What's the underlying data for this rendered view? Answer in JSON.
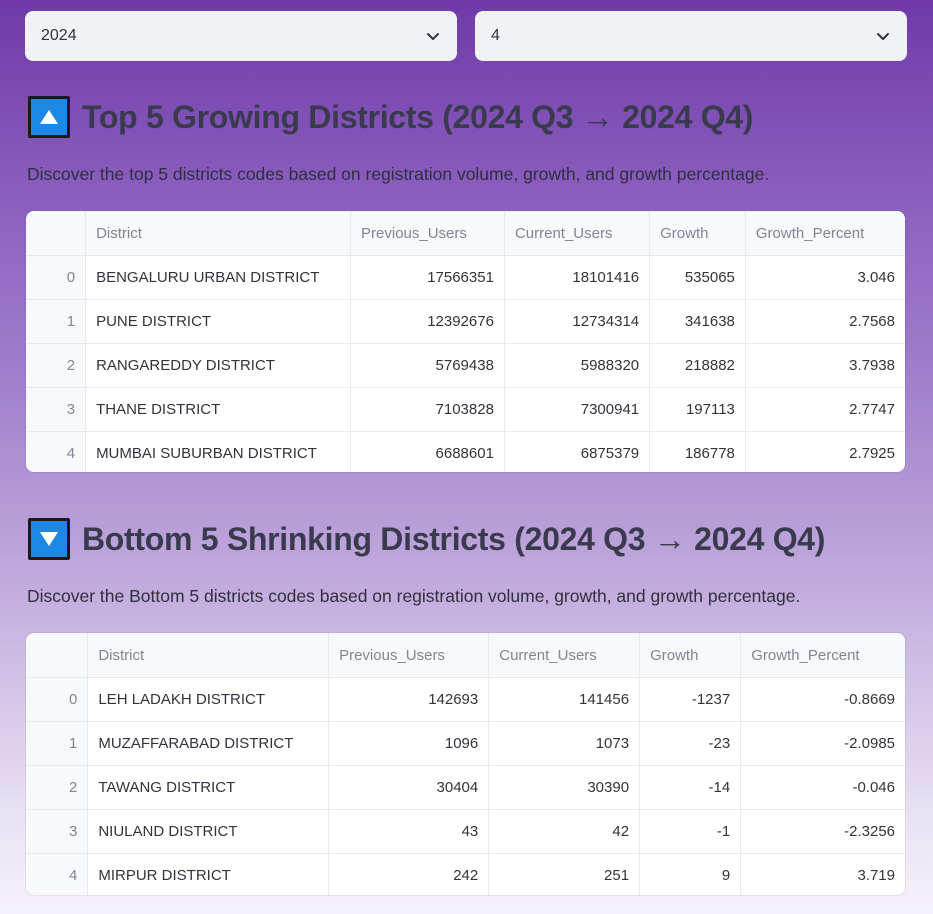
{
  "filters": {
    "year": "2024",
    "quarter": "4"
  },
  "top": {
    "icon": "arrow-up-icon",
    "title": "Top 5 Growing Districts (2024 Q3 → 2024 Q4)",
    "description": "Discover the top 5 districts codes based on registration volume, growth, and growth percentage.",
    "columns": [
      "",
      "District",
      "Previous_Users",
      "Current_Users",
      "Growth",
      "Growth_Percent"
    ],
    "rows": [
      [
        "0",
        "BENGALURU URBAN DISTRICT",
        "17566351",
        "18101416",
        "535065",
        "3.046"
      ],
      [
        "1",
        "PUNE DISTRICT",
        "12392676",
        "12734314",
        "341638",
        "2.7568"
      ],
      [
        "2",
        "RANGAREDDY DISTRICT",
        "5769438",
        "5988320",
        "218882",
        "3.7938"
      ],
      [
        "3",
        "THANE DISTRICT",
        "7103828",
        "7300941",
        "197113",
        "2.7747"
      ],
      [
        "4",
        "MUMBAI SUBURBAN DISTRICT",
        "6688601",
        "6875379",
        "186778",
        "2.7925"
      ]
    ]
  },
  "bottom": {
    "icon": "arrow-down-icon",
    "title": "Bottom 5 Shrinking Districts (2024 Q3 → 2024 Q4)",
    "description": "Discover the Bottom 5 districts codes based on registration volume, growth, and growth percentage.",
    "columns": [
      "",
      "District",
      "Previous_Users",
      "Current_Users",
      "Growth",
      "Growth_Percent"
    ],
    "rows": [
      [
        "0",
        "LEH LADAKH DISTRICT",
        "142693",
        "141456",
        "-1237",
        "-0.8669"
      ],
      [
        "1",
        "MUZAFFARABAD DISTRICT",
        "1096",
        "1073",
        "-23",
        "-2.0985"
      ],
      [
        "2",
        "TAWANG DISTRICT",
        "30404",
        "30390",
        "-14",
        "-0.046"
      ],
      [
        "3",
        "NIULAND DISTRICT",
        "43",
        "42",
        "-1",
        "-2.3256"
      ],
      [
        "4",
        "MIRPUR DISTRICT",
        "242",
        "251",
        "9",
        "3.719"
      ]
    ]
  },
  "colors": {
    "icon_bg": "#1e88e5",
    "page_gradient_top": "#6f3aa8",
    "page_gradient_bottom": "#f5f2fa"
  }
}
